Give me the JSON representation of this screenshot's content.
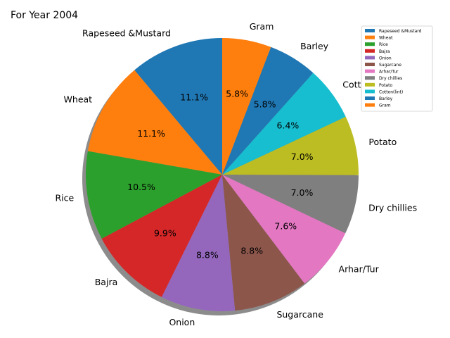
{
  "chart_data": {
    "type": "pie",
    "title": "For Year 2004",
    "categories": [
      "Rapeseed &Mustard",
      "Wheat",
      "Rice",
      "Bajra",
      "Onion",
      "Sugarcane",
      "Arhar/Tur",
      "Dry chillies",
      "Potato",
      "Cotton(lint)",
      "Barley",
      "Gram"
    ],
    "values": [
      11.1,
      11.1,
      10.5,
      9.9,
      8.8,
      8.8,
      7.6,
      7.0,
      7.0,
      6.4,
      5.8,
      5.8
    ],
    "value_labels": [
      "11.1%",
      "11.1%",
      "10.5%",
      "9.9%",
      "8.8%",
      "8.8%",
      "7.6%",
      "7.0%",
      "7.0%",
      "6.4%",
      "5.8%",
      "5.8%"
    ],
    "colors": [
      "#1f77b4",
      "#ff7f0e",
      "#2ca02c",
      "#d62728",
      "#9467bd",
      "#8c564b",
      "#e377c2",
      "#7f7f7f",
      "#bcbd22",
      "#17becf",
      "#1f77b4",
      "#ff7f0e"
    ],
    "shadow": true,
    "legend": {
      "placement": "upper-right",
      "entries": [
        "Rapeseed &Mustard",
        "Wheat",
        "Rice",
        "Bajra",
        "Onion",
        "Sugarcane",
        "Arhar/Tur",
        "Dry chillies",
        "Potato",
        "Cotton(lint)",
        "Barley",
        "Gram"
      ]
    }
  }
}
